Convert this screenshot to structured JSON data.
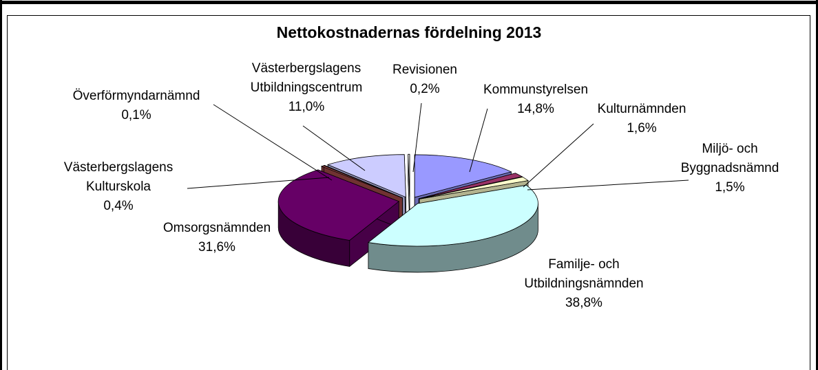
{
  "chart_data": {
    "type": "pie3d",
    "title": "Nettokostnadernas fördelning 2013",
    "categories": [
      "Kommunstyrelsen",
      "Kulturnämnden",
      "Miljö- och\nByggnadsnämnd",
      "Familje- och\nUtbildningsnämnden",
      "Omsorgsnämnden",
      "Västerbergslagens\nKulturskola",
      "Överförmyndarnämnd",
      "Västerbergslagens\nUtbildningscentrum",
      "Revisionen"
    ],
    "values": [
      14.8,
      1.6,
      1.5,
      38.8,
      31.6,
      0.4,
      0.1,
      11.0,
      0.2
    ],
    "value_labels": [
      "14,8%",
      "1,6%",
      "1,5%",
      "38,8%",
      "31,6%",
      "0,4%",
      "0,1%",
      "11,0%",
      "0,2%"
    ],
    "colors": [
      "#9999ff",
      "#993366",
      "#ffffcc",
      "#ccffff",
      "#660066",
      "#a04848",
      "#0066cc",
      "#ccccff",
      "#ffffff"
    ]
  }
}
